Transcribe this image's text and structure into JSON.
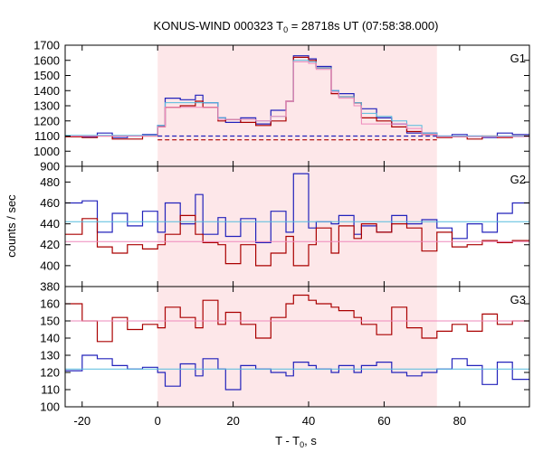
{
  "chart_data": {
    "type": "step-line",
    "title": "KONUS-WIND 000323 T",
    "title_sub": "0",
    "title_rest": " = 28718s UT (07:58:38.000)",
    "xlabel": "T - T",
    "xlabel_sub": "0",
    "xlabel_rest": ", s",
    "ylabel": "counts / sec",
    "xlim": [
      -24.5,
      98.5
    ],
    "xticks": [
      -20,
      0,
      20,
      40,
      60,
      80
    ],
    "highlight_x": [
      0,
      74
    ],
    "colors": {
      "blue": "#2222bb",
      "red": "#aa0000",
      "cyan": "#55bbdd",
      "pink": "#ee88bb",
      "shade": "#fde7e9"
    },
    "bin_edges": [
      -24.5,
      -20,
      -16,
      -12,
      -8,
      -4,
      0,
      2,
      6,
      10,
      12,
      16,
      18,
      22,
      26,
      30,
      34,
      36,
      40,
      42,
      46,
      48,
      52,
      54,
      58,
      62,
      66,
      70,
      74,
      78,
      82,
      86,
      90,
      94,
      98.5
    ],
    "panels": [
      {
        "label": "G1",
        "ylim": [
          900,
          1700
        ],
        "yticks": [
          900,
          1000,
          1100,
          1200,
          1300,
          1400,
          1500,
          1600,
          1700
        ],
        "series": [
          {
            "name": "",
            "color": "blue",
            "values": [
              1100,
              1095,
              1120,
              1090,
              1100,
              1110,
              1170,
              1350,
              1340,
              1370,
              1320,
              1220,
              1190,
              1220,
              1180,
              1270,
              1330,
              1630,
              1610,
              1560,
              1400,
              1380,
              1320,
              1280,
              1220,
              1180,
              1120,
              1120,
              1100,
              1110,
              1100,
              1090,
              1120,
              1110
            ]
          },
          {
            "name": "",
            "color": "red",
            "values": [
              1095,
              1090,
              1100,
              1080,
              1080,
              1100,
              1160,
              1290,
              1300,
              1330,
              1290,
              1200,
              1210,
              1190,
              1170,
              1200,
              1330,
              1620,
              1600,
              1550,
              1380,
              1360,
              1320,
              1220,
              1200,
              1160,
              1130,
              1110,
              1090,
              1095,
              1080,
              1100,
              1090,
              1100
            ]
          },
          {
            "name": "",
            "color": "cyan",
            "values": [
              1105,
              1105,
              1105,
              1105,
              1105,
              1105,
              1170,
              1320,
              1320,
              1320,
              1320,
              1220,
              1210,
              1210,
              1200,
              1230,
              1330,
              1600,
              1590,
              1550,
              1400,
              1360,
              1320,
              1250,
              1230,
              1200,
              1170,
              1120,
              1100,
              1100,
              1100,
              1100,
              1100,
              1100
            ]
          },
          {
            "name": "",
            "color": "pink",
            "values": [
              1100,
              1100,
              1100,
              1100,
              1100,
              1100,
              1160,
              1290,
              1290,
              1290,
              1290,
              1210,
              1210,
              1210,
              1200,
              1230,
              1330,
              1590,
              1580,
              1540,
              1390,
              1350,
              1300,
              1180,
              1180,
              1180,
              1150,
              1110,
              1095,
              1095,
              1095,
              1095,
              1095,
              1095
            ]
          }
        ],
        "dashed": [
          {
            "color": "blue",
            "y": 1100,
            "from": 0,
            "to": 74
          },
          {
            "color": "red",
            "y": 1075,
            "from": 0,
            "to": 74
          }
        ]
      },
      {
        "label": "G2",
        "ylim": [
          380,
          495
        ],
        "yticks": [
          380,
          400,
          420,
          440,
          460,
          480
        ],
        "series": [
          {
            "name": "",
            "color": "blue",
            "values": [
              460,
              462,
              432,
              450,
              438,
              452,
              432,
              460,
              440,
              468,
              430,
              446,
              428,
              445,
              422,
              452,
              432,
              488,
              436,
              442,
              440,
              448,
              430,
              438,
              432,
              448,
              440,
              444,
              436,
              426,
              440,
              432,
              450,
              460
            ]
          },
          {
            "name": "",
            "color": "red",
            "values": [
              430,
              445,
              418,
              412,
              420,
              416,
              420,
              430,
              448,
              430,
              422,
              420,
              402,
              420,
              400,
              412,
              428,
              400,
              420,
              436,
              412,
              438,
              426,
              440,
              432,
              440,
              436,
              414,
              432,
              418,
              420,
              424,
              422,
              424
            ]
          },
          {
            "name": "",
            "color": "cyan",
            "values": [
              442,
              442,
              442,
              442,
              442,
              442,
              442,
              442,
              442,
              442,
              442,
              442,
              442,
              442,
              442,
              442,
              442,
              442,
              442,
              442,
              442,
              442,
              442,
              442,
              442,
              442,
              442,
              442,
              442,
              442,
              442,
              442,
              442,
              442
            ]
          },
          {
            "name": "",
            "color": "pink",
            "values": [
              423,
              423,
              423,
              423,
              423,
              423,
              423,
              423,
              423,
              423,
              423,
              423,
              423,
              423,
              423,
              423,
              423,
              423,
              423,
              423,
              423,
              423,
              423,
              423,
              423,
              423,
              423,
              423,
              423,
              423,
              423,
              423,
              423,
              423
            ]
          }
        ],
        "dashed": []
      },
      {
        "label": "G3",
        "ylim": [
          100,
          170
        ],
        "yticks": [
          100,
          110,
          120,
          130,
          140,
          150,
          160
        ],
        "series": [
          {
            "name": "",
            "color": "blue",
            "values": [
              121,
              130,
              128,
              124,
              122,
              123,
              120,
              112,
              125,
              118,
              128,
              122,
              110,
              124,
              122,
              120,
              118,
              126,
              124,
              122,
              120,
              124,
              120,
              124,
              126,
              120,
              118,
              120,
              122,
              128,
              124,
              113,
              126,
              116
            ]
          },
          {
            "name": "",
            "color": "red",
            "values": [
              160,
              150,
              138,
              152,
              145,
              148,
              146,
              158,
              152,
              146,
              162,
              148,
              155,
              148,
              140,
              152,
              160,
              165,
              162,
              160,
              158,
              156,
              152,
              148,
              142,
              158,
              146,
              140,
              144,
              148,
              144,
              154,
              148,
              150
            ]
          },
          {
            "name": "",
            "color": "cyan",
            "values": [
              122,
              122,
              122,
              122,
              122,
              122,
              122,
              122,
              122,
              122,
              122,
              122,
              122,
              122,
              122,
              122,
              122,
              122,
              122,
              122,
              122,
              122,
              122,
              122,
              122,
              122,
              122,
              122,
              122,
              122,
              122,
              122,
              122,
              122
            ]
          },
          {
            "name": "",
            "color": "pink",
            "values": [
              150,
              150,
              150,
              150,
              150,
              150,
              150,
              150,
              150,
              150,
              150,
              150,
              150,
              150,
              150,
              150,
              150,
              150,
              150,
              150,
              150,
              150,
              150,
              150,
              150,
              150,
              150,
              150,
              150,
              150,
              150,
              150,
              150,
              150
            ]
          }
        ],
        "dashed": []
      }
    ]
  }
}
